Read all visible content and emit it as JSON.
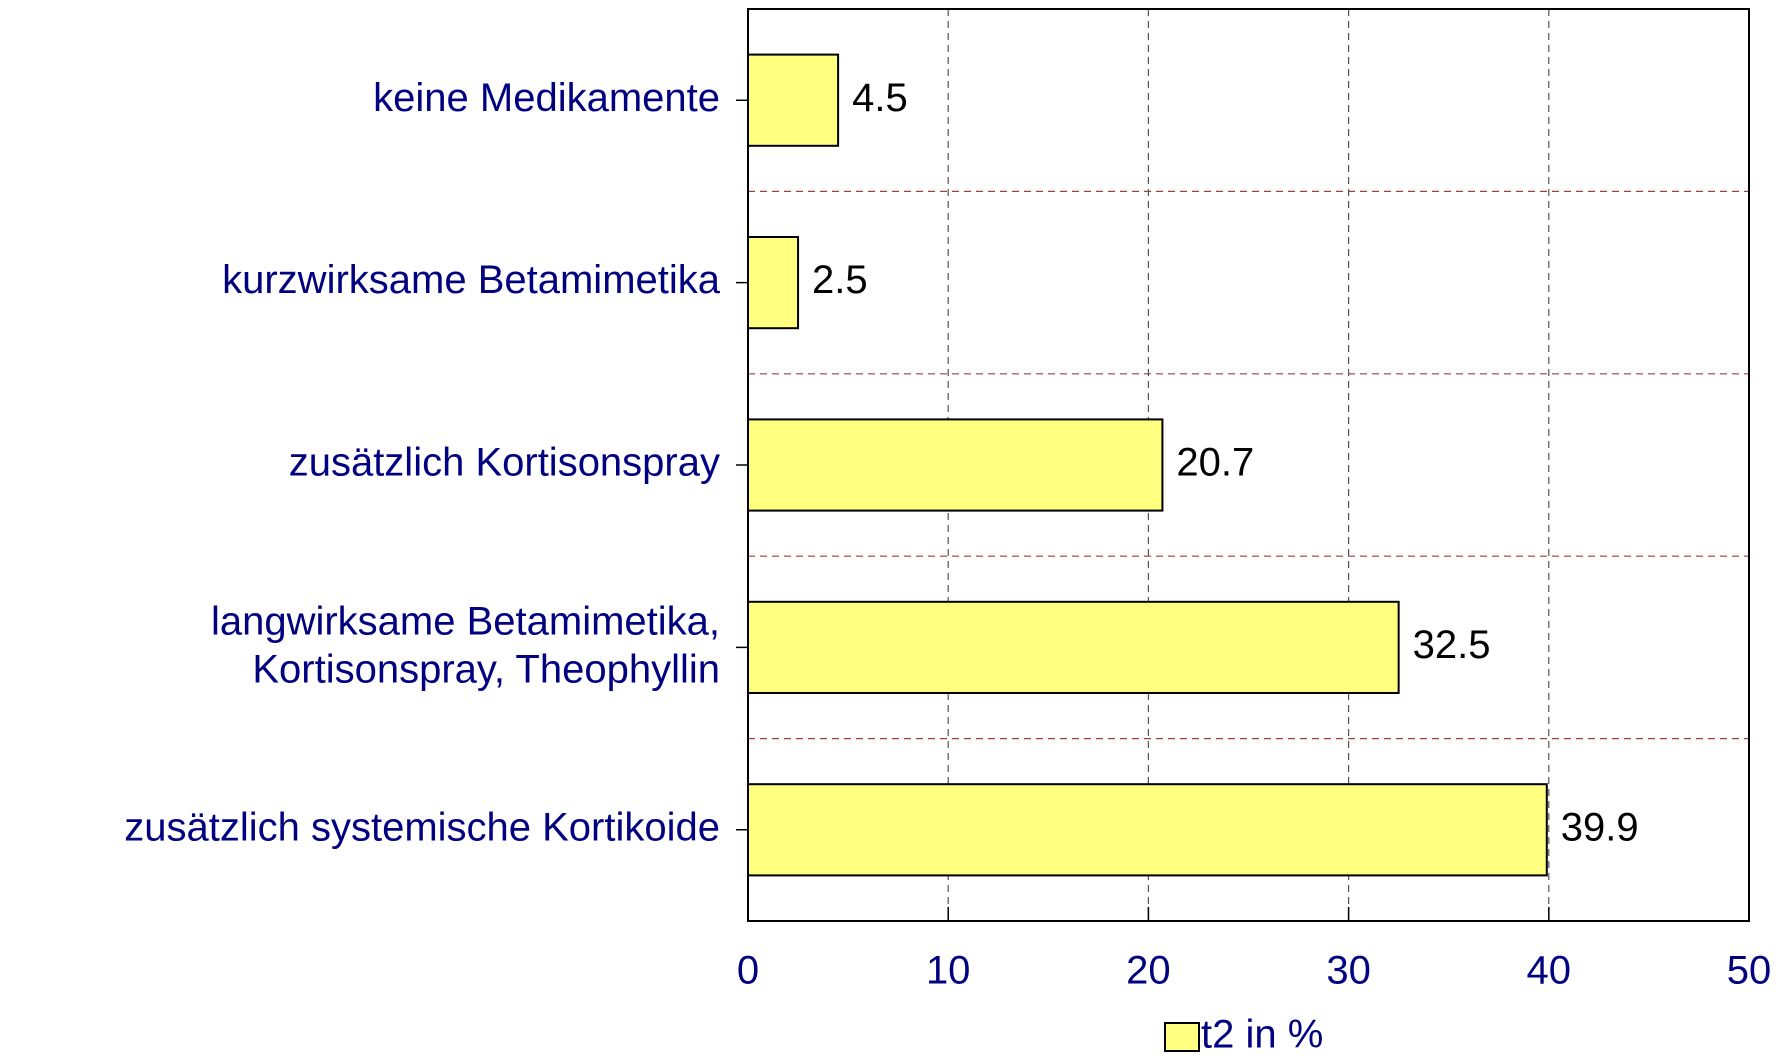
{
  "chart_data": {
    "type": "bar",
    "orientation": "horizontal",
    "categories": [
      "keine Medikamente",
      "kurzwirksame Betamimetika",
      "zusätzlich Kortisonspray",
      "langwirksame Betamimetika,\nKortisonspray, Theophyllin",
      "zusätzlich systemische Kortikoide"
    ],
    "series": [
      {
        "name": "t2 in %",
        "color": "#ffff80",
        "values": [
          4.5,
          2.5,
          20.7,
          32.5,
          39.9
        ]
      }
    ],
    "xlim": [
      0,
      50
    ],
    "xticks": [
      0,
      10,
      20,
      30,
      40,
      50
    ],
    "grid": true,
    "legend": "bottom"
  }
}
